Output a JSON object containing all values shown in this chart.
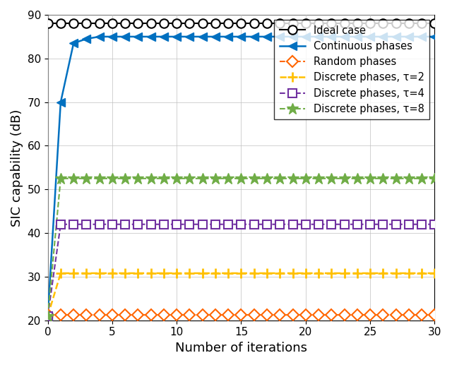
{
  "xlim": [
    0,
    30
  ],
  "ylim": [
    20,
    90
  ],
  "xlabel": "Number of iterations",
  "ylabel": "SIC capability (dB)",
  "xticks": [
    0,
    5,
    10,
    15,
    20,
    25,
    30
  ],
  "yticks": [
    20,
    30,
    40,
    50,
    60,
    70,
    80,
    90
  ],
  "series": [
    {
      "key": "ideal",
      "label": "Ideal case",
      "color": "#000000",
      "linestyle": "-",
      "marker": "o",
      "markersize": 9,
      "linewidth": 1.5,
      "x": [
        0,
        1,
        2,
        3,
        4,
        5,
        6,
        7,
        8,
        9,
        10,
        11,
        12,
        13,
        14,
        15,
        16,
        17,
        18,
        19,
        20,
        21,
        22,
        23,
        24,
        25,
        26,
        27,
        28,
        29,
        30
      ],
      "y": [
        88.0,
        88.0,
        88.0,
        88.0,
        88.0,
        88.0,
        88.0,
        88.0,
        88.0,
        88.0,
        88.0,
        88.0,
        88.0,
        88.0,
        88.0,
        88.0,
        88.0,
        88.0,
        88.0,
        88.0,
        88.0,
        88.0,
        88.0,
        88.0,
        88.0,
        88.0,
        88.0,
        88.0,
        88.0,
        88.0,
        88.0
      ],
      "markerfacecolor": "white",
      "markeredgecolor": "#000000",
      "markeredgewidth": 1.5
    },
    {
      "key": "continuous",
      "label": "Continuous phases",
      "color": "#0070C0",
      "linestyle": "-",
      "marker": "<",
      "markersize": 9,
      "linewidth": 1.8,
      "x": [
        0,
        1,
        2,
        3,
        4,
        5,
        6,
        7,
        8,
        9,
        10,
        11,
        12,
        13,
        14,
        15,
        16,
        17,
        18,
        19,
        20,
        21,
        22,
        23,
        24,
        25,
        26,
        27,
        28,
        29,
        30
      ],
      "y": [
        21.0,
        70.0,
        83.5,
        84.5,
        85.0,
        85.0,
        85.0,
        85.0,
        85.0,
        85.0,
        85.0,
        85.0,
        85.0,
        85.0,
        85.0,
        85.0,
        85.0,
        85.0,
        85.0,
        85.0,
        85.0,
        85.0,
        85.0,
        85.0,
        85.0,
        85.0,
        85.0,
        85.0,
        85.0,
        85.0,
        85.0
      ],
      "markerfacecolor": "#0070C0",
      "markeredgecolor": "#0070C0",
      "markeredgewidth": 1.0
    },
    {
      "key": "random",
      "label": "Random phases",
      "color": "#FF6600",
      "linestyle": "--",
      "marker": "D",
      "markersize": 8,
      "linewidth": 1.5,
      "x": [
        0,
        1,
        2,
        3,
        4,
        5,
        6,
        7,
        8,
        9,
        10,
        11,
        12,
        13,
        14,
        15,
        16,
        17,
        18,
        19,
        20,
        21,
        22,
        23,
        24,
        25,
        26,
        27,
        28,
        29,
        30
      ],
      "y": [
        21.2,
        21.2,
        21.2,
        21.2,
        21.2,
        21.2,
        21.2,
        21.2,
        21.2,
        21.2,
        21.2,
        21.2,
        21.2,
        21.2,
        21.2,
        21.2,
        21.2,
        21.2,
        21.2,
        21.2,
        21.2,
        21.2,
        21.2,
        21.2,
        21.2,
        21.2,
        21.2,
        21.2,
        21.2,
        21.2,
        21.2
      ],
      "markerfacecolor": "white",
      "markeredgecolor": "#FF6600",
      "markeredgewidth": 1.5
    },
    {
      "key": "discrete2",
      "label": "Discrete phases, τ=2",
      "color": "#FFC000",
      "linestyle": "--",
      "marker": "+",
      "markersize": 10,
      "linewidth": 1.8,
      "x": [
        0,
        1,
        2,
        3,
        4,
        5,
        6,
        7,
        8,
        9,
        10,
        11,
        12,
        13,
        14,
        15,
        16,
        17,
        18,
        19,
        20,
        21,
        22,
        23,
        24,
        25,
        26,
        27,
        28,
        29,
        30
      ],
      "y": [
        21.0,
        30.8,
        30.8,
        30.8,
        30.8,
        30.8,
        30.8,
        30.8,
        30.8,
        30.8,
        30.8,
        30.8,
        30.8,
        30.8,
        30.8,
        30.8,
        30.8,
        30.8,
        30.8,
        30.8,
        30.8,
        30.8,
        30.8,
        30.8,
        30.8,
        30.8,
        30.8,
        30.8,
        30.8,
        30.8,
        30.8
      ],
      "markerfacecolor": "#FFC000",
      "markeredgecolor": "#FFC000",
      "markeredgewidth": 2.0
    },
    {
      "key": "discrete4",
      "label": "Discrete phases, τ=4",
      "color": "#7030A0",
      "linestyle": "--",
      "marker": "s",
      "markersize": 8,
      "linewidth": 1.5,
      "x": [
        0,
        1,
        2,
        3,
        4,
        5,
        6,
        7,
        8,
        9,
        10,
        11,
        12,
        13,
        14,
        15,
        16,
        17,
        18,
        19,
        20,
        21,
        22,
        23,
        24,
        25,
        26,
        27,
        28,
        29,
        30
      ],
      "y": [
        21.0,
        42.0,
        42.0,
        42.0,
        42.0,
        42.0,
        42.0,
        42.0,
        42.0,
        42.0,
        42.0,
        42.0,
        42.0,
        42.0,
        42.0,
        42.0,
        42.0,
        42.0,
        42.0,
        42.0,
        42.0,
        42.0,
        42.0,
        42.0,
        42.0,
        42.0,
        42.0,
        42.0,
        42.0,
        42.0,
        42.0
      ],
      "markerfacecolor": "white",
      "markeredgecolor": "#7030A0",
      "markeredgewidth": 1.5
    },
    {
      "key": "discrete8",
      "label": "Discrete phases, τ=8",
      "color": "#70AD47",
      "linestyle": "--",
      "marker": "*",
      "markersize": 12,
      "linewidth": 1.5,
      "x": [
        0,
        1,
        2,
        3,
        4,
        5,
        6,
        7,
        8,
        9,
        10,
        11,
        12,
        13,
        14,
        15,
        16,
        17,
        18,
        19,
        20,
        21,
        22,
        23,
        24,
        25,
        26,
        27,
        28,
        29,
        30
      ],
      "y": [
        21.0,
        52.5,
        52.5,
        52.5,
        52.5,
        52.5,
        52.5,
        52.5,
        52.5,
        52.5,
        52.5,
        52.5,
        52.5,
        52.5,
        52.5,
        52.5,
        52.5,
        52.5,
        52.5,
        52.5,
        52.5,
        52.5,
        52.5,
        52.5,
        52.5,
        52.5,
        52.5,
        52.5,
        52.5,
        52.5,
        52.5
      ],
      "markerfacecolor": "#70AD47",
      "markeredgecolor": "#70AD47",
      "markeredgewidth": 1.0
    }
  ],
  "legend_loc": "upper right",
  "legend_fontsize": 10.5,
  "grid": true,
  "figsize": [
    6.4,
    5.17
  ],
  "dpi": 100,
  "tick_fontsize": 11,
  "label_fontsize": 13
}
